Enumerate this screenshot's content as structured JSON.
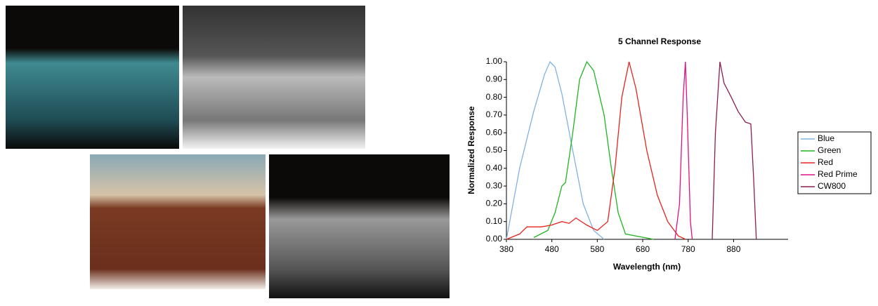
{
  "chart_data": {
    "type": "line",
    "title": "5 Channel Response",
    "x_label": "Wavelength (nm)",
    "y_label": "Normalized Response",
    "xlim": [
      380,
      1000
    ],
    "xticks": [
      380,
      480,
      580,
      680,
      780,
      880
    ],
    "ylim": [
      0,
      1
    ],
    "yticks": [
      {
        "value": 0,
        "label": "0.00"
      },
      {
        "value": 0.1,
        "label": "0.10"
      },
      {
        "value": 0.2,
        "label": "0.20"
      },
      {
        "value": 0.3,
        "label": "0.30"
      },
      {
        "value": 0.4,
        "label": "0.40"
      },
      {
        "value": 0.5,
        "label": "0.50"
      },
      {
        "value": 0.6,
        "label": "0.60"
      },
      {
        "value": 0.7,
        "label": "0.70"
      },
      {
        "value": 0.8,
        "label": "0.80"
      },
      {
        "value": 0.9,
        "label": "0.90"
      },
      {
        "value": 1,
        "label": "1.00"
      }
    ],
    "legend": "right",
    "series": [
      {
        "name": "Blue",
        "color": "#7fb2e6",
        "x": [
          380,
          409,
          440,
          464,
          476,
          487,
          502,
          526,
          549,
          572,
          595
        ],
        "values": [
          0,
          0.4,
          0.72,
          0.93,
          1.0,
          0.97,
          0.82,
          0.5,
          0.2,
          0.05,
          0
        ]
      },
      {
        "name": "Green",
        "color": "#1fb51f",
        "x": [
          440,
          471,
          487,
          502,
          510,
          526,
          541,
          557,
          572,
          595,
          611,
          626,
          642,
          704
        ],
        "values": [
          0.01,
          0.05,
          0.15,
          0.3,
          0.32,
          0.6,
          0.9,
          1.0,
          0.95,
          0.7,
          0.4,
          0.15,
          0.03,
          0
        ]
      },
      {
        "name": "Red",
        "color": "#e8231e",
        "x": [
          380,
          409,
          425,
          456,
          479,
          502,
          518,
          533,
          557,
          580,
          603,
          619,
          634,
          650,
          665,
          689,
          712,
          735,
          758,
          774
        ],
        "values": [
          0,
          0.03,
          0.07,
          0.07,
          0.08,
          0.1,
          0.09,
          0.12,
          0.08,
          0.05,
          0.1,
          0.4,
          0.8,
          1.0,
          0.85,
          0.5,
          0.25,
          0.1,
          0.02,
          0
        ]
      },
      {
        "name": "Red Prime",
        "color": "#e0108a",
        "x": [
          751,
          761,
          769,
          774,
          778,
          785,
          789
        ],
        "values": [
          0,
          0.2,
          0.8,
          1.0,
          0.7,
          0.1,
          0
        ]
      },
      {
        "name": "CW800",
        "color": "#8b1e50",
        "x": [
          833,
          840,
          850,
          859,
          875,
          890,
          906,
          918,
          924,
          930
        ],
        "values": [
          0,
          0.6,
          1.0,
          0.88,
          0.8,
          0.72,
          0.66,
          0.65,
          0.35,
          0
        ]
      }
    ]
  }
}
